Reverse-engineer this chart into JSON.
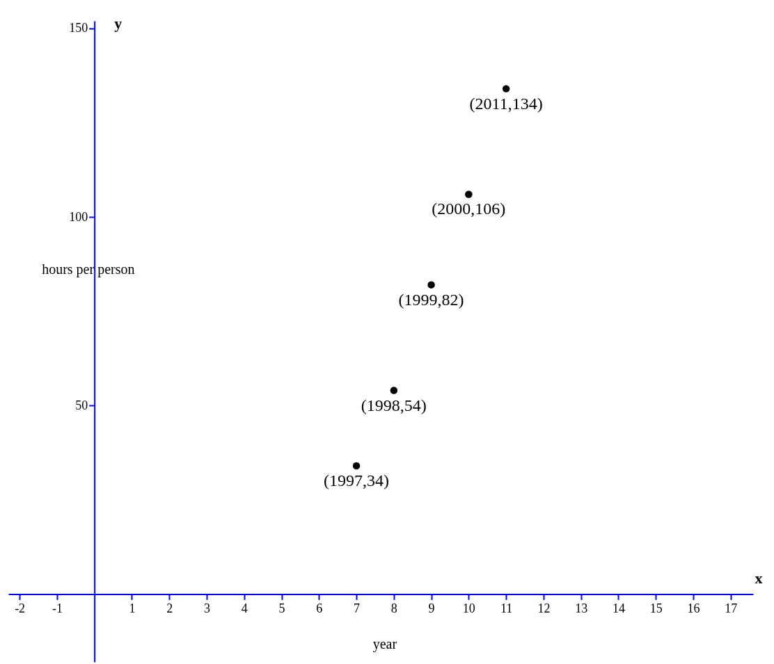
{
  "chart_data": {
    "type": "scatter",
    "xlabel": "year",
    "ylabel": "hours per person",
    "x": [
      7,
      8,
      9,
      10,
      11
    ],
    "series": [
      {
        "color": "#000000",
        "values": [
          34,
          54,
          82,
          106,
          134
        ]
      }
    ],
    "xlim": [
      -2.3,
      17.6
    ],
    "ylim": [
      -18,
      152
    ],
    "xticks": [
      -2,
      -1,
      1,
      2,
      3,
      4,
      5,
      6,
      7,
      8,
      9,
      10,
      11,
      12,
      13,
      14,
      15,
      16,
      17
    ],
    "yticks": [
      50,
      100,
      150
    ],
    "grid": false,
    "marker": "circle",
    "annotations": [
      {
        "text": "(1997,34)",
        "x": 7,
        "y": 34
      },
      {
        "text": "(1998,54)",
        "x": 8,
        "y": 54
      },
      {
        "text": "(1999,82)",
        "x": 9,
        "y": 82
      },
      {
        "text": "(2000,106)",
        "x": 10,
        "y": 106
      },
      {
        "text": "(2011,134)",
        "x": 11,
        "y": 134
      },
      "x",
      "y"
    ]
  }
}
